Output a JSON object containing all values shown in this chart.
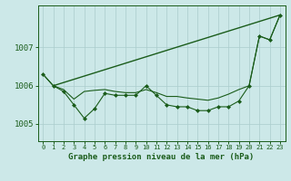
{
  "background_color": "#cce8e8",
  "plot_bg_color": "#cce8e8",
  "grid_color": "#aacccc",
  "line_color": "#1a5c1a",
  "title": "Graphe pression niveau de la mer (hPa)",
  "xlim": [
    -0.5,
    23.5
  ],
  "ylim": [
    1004.55,
    1008.1
  ],
  "yticks": [
    1005,
    1006,
    1007
  ],
  "xticks": [
    0,
    1,
    2,
    3,
    4,
    5,
    6,
    7,
    8,
    9,
    10,
    11,
    12,
    13,
    14,
    15,
    16,
    17,
    18,
    19,
    20,
    21,
    22,
    23
  ],
  "series1_x": [
    0,
    1,
    2,
    3,
    4,
    5,
    6,
    7,
    8,
    9,
    10,
    11,
    12,
    13,
    14,
    15,
    16,
    17,
    18,
    19,
    20,
    21,
    22,
    23
  ],
  "series1_y": [
    1006.3,
    1006.0,
    1005.85,
    1005.5,
    1005.15,
    1005.4,
    1005.8,
    1005.75,
    1005.75,
    1005.75,
    1006.0,
    1005.75,
    1005.5,
    1005.45,
    1005.45,
    1005.35,
    1005.35,
    1005.45,
    1005.45,
    1005.6,
    1006.0,
    1007.3,
    1007.2,
    1007.85
  ],
  "series2_x": [
    0,
    1,
    2,
    3,
    4,
    5,
    6,
    7,
    8,
    9,
    10,
    11,
    12,
    13,
    14,
    15,
    16,
    17,
    18,
    19,
    20,
    21,
    22,
    23
  ],
  "series2_y": [
    1006.3,
    1006.0,
    1005.9,
    1005.65,
    1005.85,
    1005.88,
    1005.9,
    1005.85,
    1005.82,
    1005.82,
    1005.9,
    1005.82,
    1005.72,
    1005.72,
    1005.68,
    1005.65,
    1005.62,
    1005.68,
    1005.78,
    1005.9,
    1006.0,
    1007.3,
    1007.2,
    1007.85
  ],
  "trend_x": [
    1,
    23
  ],
  "trend_y": [
    1006.0,
    1007.85
  ]
}
